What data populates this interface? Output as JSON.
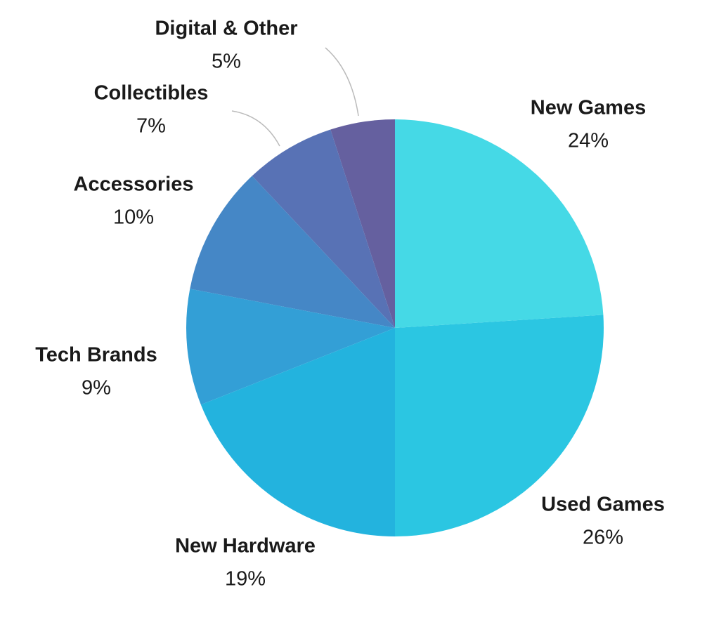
{
  "chart_data": {
    "type": "pie",
    "categories": [
      "New Games",
      "Used Games",
      "New Hardware",
      "Tech Brands",
      "Accessories",
      "Collectibles",
      "Digital & Other"
    ],
    "values": [
      24,
      26,
      19,
      9,
      10,
      7,
      5
    ],
    "value_labels": [
      "24%",
      "26%",
      "19%",
      "9%",
      "10%",
      "7%",
      "5%"
    ],
    "colors": [
      "#45d9e6",
      "#2bc6e2",
      "#23b3de",
      "#339fd6",
      "#4587c6",
      "#5872b5",
      "#65609f"
    ]
  }
}
